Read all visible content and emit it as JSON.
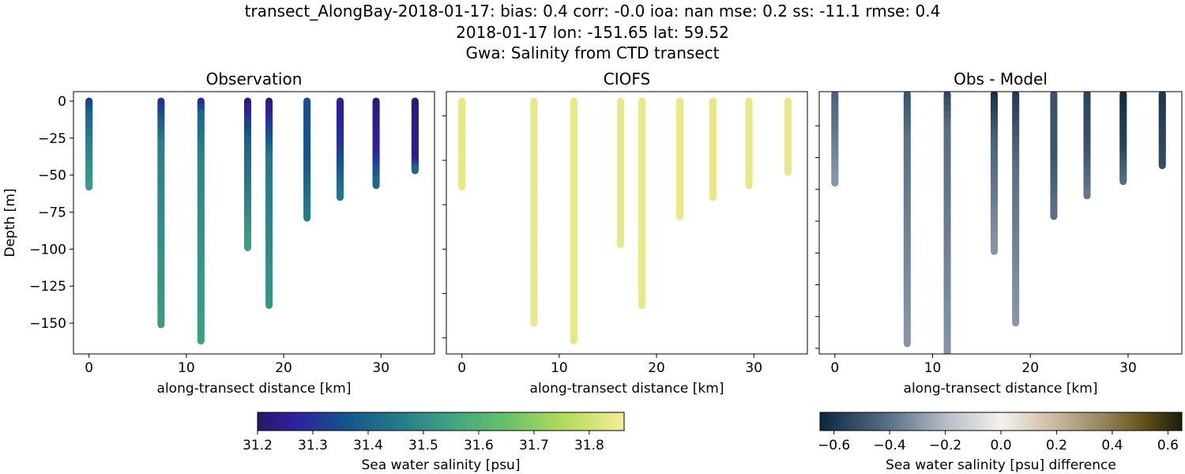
{
  "figure": {
    "title_lines": [
      "transect_AlongBay-2018-01-17: bias: 0.4  corr: -0.0  ioa: nan  mse: 0.2  ss: -11.1  rmse: 0.4",
      "2018-01-17 lon: -151.65 lat: 59.52",
      "Gwa: Salinity from CTD transect"
    ]
  },
  "chart_data": [
    {
      "type": "scatter",
      "title": "Observation",
      "xlabel": "along-transect distance [km]",
      "ylabel": "Depth [m]",
      "xlim": [
        -1.6,
        35.5
      ],
      "ylim": [
        -170.8,
        6.4
      ],
      "xticks": [
        0,
        10,
        20,
        30
      ],
      "yticks": [
        0,
        -25,
        -50,
        -75,
        -100,
        -125,
        -150
      ],
      "ytick_labels": [
        "0",
        "−25",
        "−50",
        "−75",
        "−100",
        "−125",
        "−150"
      ],
      "show_ytick_labels": true,
      "colormap": "salinity",
      "profiles": [
        {
          "x": 0,
          "points": [
            [
              0,
              31.3
            ],
            [
              -10,
              31.4
            ],
            [
              -30,
              31.47
            ],
            [
              -58,
              31.53
            ]
          ]
        },
        {
          "x": 7.4,
          "points": [
            [
              0,
              31.28
            ],
            [
              -15,
              31.38
            ],
            [
              -30,
              31.47
            ],
            [
              -151,
              31.53
            ]
          ]
        },
        {
          "x": 11.5,
          "points": [
            [
              0,
              31.25
            ],
            [
              -10,
              31.4
            ],
            [
              -40,
              31.48
            ],
            [
              -162,
              31.54
            ]
          ]
        },
        {
          "x": 16.3,
          "points": [
            [
              0,
              31.22
            ],
            [
              -10,
              31.28
            ],
            [
              -30,
              31.4
            ],
            [
              -99,
              31.54
            ]
          ]
        },
        {
          "x": 18.5,
          "points": [
            [
              0,
              31.22
            ],
            [
              -15,
              31.3
            ],
            [
              -40,
              31.45
            ],
            [
              -138,
              31.52
            ]
          ]
        },
        {
          "x": 22.4,
          "points": [
            [
              0,
              31.35
            ],
            [
              -40,
              31.36
            ],
            [
              -79,
              31.46
            ]
          ]
        },
        {
          "x": 25.8,
          "points": [
            [
              0,
              31.25
            ],
            [
              -30,
              31.3
            ],
            [
              -65,
              31.45
            ]
          ]
        },
        {
          "x": 29.5,
          "points": [
            [
              0,
              31.22
            ],
            [
              -35,
              31.27
            ],
            [
              -57,
              31.42
            ]
          ]
        },
        {
          "x": 33.5,
          "points": [
            [
              0,
              31.22
            ],
            [
              -40,
              31.25
            ],
            [
              -47,
              31.42
            ]
          ]
        }
      ]
    },
    {
      "type": "scatter",
      "title": "CIOFS",
      "xlabel": "along-transect distance [km]",
      "ylabel": "",
      "xlim": [
        -1.6,
        35.5
      ],
      "ylim": [
        -170.8,
        6.4
      ],
      "xticks": [
        0,
        10,
        20,
        30
      ],
      "yticks": [
        -10,
        -40,
        -70,
        -100,
        -130,
        -160
      ],
      "show_ytick_labels": false,
      "colormap": "salinity",
      "profiles": [
        {
          "x": 0,
          "points": [
            [
              0,
              31.84
            ],
            [
              -58,
              31.84
            ]
          ]
        },
        {
          "x": 7.4,
          "points": [
            [
              0,
              31.84
            ],
            [
              -150,
              31.84
            ]
          ]
        },
        {
          "x": 11.5,
          "points": [
            [
              0,
              31.84
            ],
            [
              -162,
              31.84
            ]
          ]
        },
        {
          "x": 16.3,
          "points": [
            [
              0,
              31.84
            ],
            [
              -97,
              31.84
            ]
          ]
        },
        {
          "x": 18.5,
          "points": [
            [
              0,
              31.84
            ],
            [
              -138,
              31.84
            ]
          ]
        },
        {
          "x": 22.4,
          "points": [
            [
              0,
              31.84
            ],
            [
              -78,
              31.84
            ]
          ]
        },
        {
          "x": 25.8,
          "points": [
            [
              0,
              31.84
            ],
            [
              -65,
              31.84
            ]
          ]
        },
        {
          "x": 29.5,
          "points": [
            [
              0,
              31.84
            ],
            [
              -57,
              31.84
            ]
          ]
        },
        {
          "x": 33.5,
          "points": [
            [
              0,
              31.84
            ],
            [
              -48,
              31.84
            ]
          ]
        }
      ]
    },
    {
      "type": "scatter",
      "title": "Obs - Model",
      "xlabel": "along-transect distance [km]",
      "ylabel": "",
      "xlim": [
        -1.6,
        35.5
      ],
      "ylim": [
        -163.5,
        1.5
      ],
      "xticks": [
        0,
        10,
        20,
        30
      ],
      "yticks": [
        -20,
        -40,
        -60,
        -80,
        -100,
        -120,
        -140,
        -160
      ],
      "show_ytick_labels": false,
      "colormap": "difference",
      "profiles": [
        {
          "x": 0,
          "points": [
            [
              0,
              -0.45
            ],
            [
              -56,
              -0.3
            ]
          ]
        },
        {
          "x": 7.4,
          "points": [
            [
              0,
              -0.5
            ],
            [
              -30,
              -0.4
            ],
            [
              -157,
              -0.3
            ]
          ]
        },
        {
          "x": 11.5,
          "points": [
            [
              0,
              -0.55
            ],
            [
              -20,
              -0.42
            ],
            [
              -170,
              -0.3
            ]
          ]
        },
        {
          "x": 16.3,
          "points": [
            [
              0,
              -0.62
            ],
            [
              -30,
              -0.45
            ],
            [
              -99,
              -0.3
            ]
          ]
        },
        {
          "x": 18.5,
          "points": [
            [
              0,
              -0.58
            ],
            [
              -50,
              -0.4
            ],
            [
              -144,
              -0.3
            ]
          ]
        },
        {
          "x": 22.4,
          "points": [
            [
              0,
              -0.5
            ],
            [
              -40,
              -0.5
            ],
            [
              -77,
              -0.4
            ]
          ]
        },
        {
          "x": 25.8,
          "points": [
            [
              0,
              -0.55
            ],
            [
              -35,
              -0.5
            ],
            [
              -64,
              -0.38
            ]
          ]
        },
        {
          "x": 29.5,
          "points": [
            [
              0,
              -0.63
            ],
            [
              -35,
              -0.55
            ],
            [
              -55,
              -0.42
            ]
          ]
        },
        {
          "x": 33.5,
          "points": [
            [
              0,
              -0.6
            ],
            [
              -45,
              -0.52
            ]
          ]
        }
      ]
    }
  ],
  "colorbars": [
    {
      "id": "salinity",
      "label": "Sea water salinity [psu]",
      "range": [
        31.2,
        31.863
      ],
      "ticks": [
        31.2,
        31.3,
        31.4,
        31.5,
        31.6,
        31.7,
        31.8
      ],
      "tick_labels": [
        "31.2",
        "31.3",
        "31.4",
        "31.5",
        "31.6",
        "31.7",
        "31.8"
      ],
      "stops": [
        [
          31.2,
          "#2a1868"
        ],
        [
          31.27,
          "#2c22a0"
        ],
        [
          31.35,
          "#16508e"
        ],
        [
          31.45,
          "#24788a"
        ],
        [
          31.55,
          "#3ea482"
        ],
        [
          31.65,
          "#68c168"
        ],
        [
          31.75,
          "#b0da5a"
        ],
        [
          31.863,
          "#f6ec94"
        ]
      ]
    },
    {
      "id": "difference",
      "label": "Sea water salinity [psu] difference",
      "range": [
        -0.65,
        0.65
      ],
      "ticks": [
        -0.6,
        -0.4,
        -0.2,
        0.0,
        0.2,
        0.4,
        0.6
      ],
      "tick_labels": [
        "−0.6",
        "−0.4",
        "−0.2",
        "0.0",
        "0.2",
        "0.4",
        "0.6"
      ],
      "stops": [
        [
          -0.65,
          "#0c2640"
        ],
        [
          -0.4,
          "#5a7188"
        ],
        [
          -0.2,
          "#b4bcc4"
        ],
        [
          0,
          "#f4f1ee"
        ],
        [
          0.2,
          "#c9b89c"
        ],
        [
          0.4,
          "#8c7a4e"
        ],
        [
          0.5,
          "#6a561e"
        ],
        [
          0.65,
          "#1a1e08"
        ]
      ]
    }
  ]
}
